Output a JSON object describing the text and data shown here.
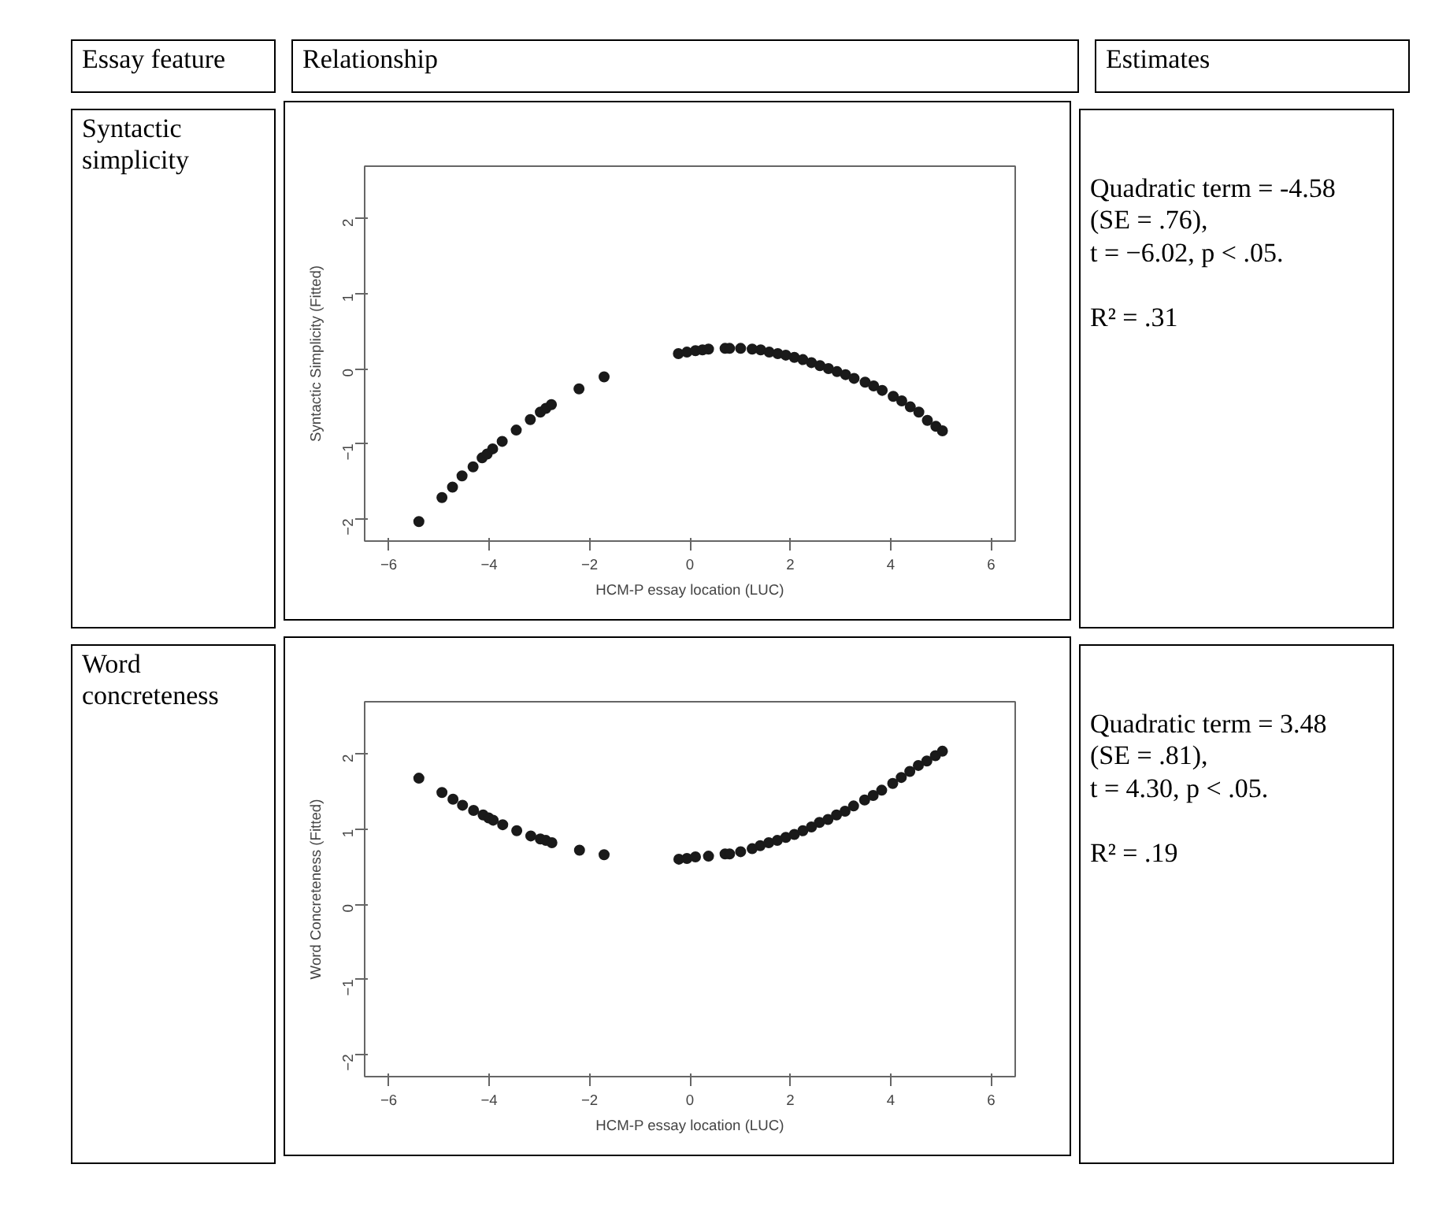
{
  "chart_data": [
    {
      "type": "other",
      "annotations": [
        "Essay feature",
        "Relationship",
        "Estimates"
      ]
    },
    {
      "type": "other",
      "annotations": [
        "Syntactic simplicity"
      ]
    },
    {
      "type": "scatter",
      "xlabel": "HCM-P essay location (LUC)",
      "ylabel": "Syntactic Simplicity (Fitted)",
      "xlim": [
        -6.48,
        6.48
      ],
      "ylim": [
        -2.3,
        2.7
      ],
      "xticks": [
        -6,
        -4,
        -2,
        0,
        2,
        4,
        6
      ],
      "yticks": [
        -2,
        -1,
        0,
        1,
        2
      ],
      "grid": false,
      "marker": "circle",
      "series": [
        {
          "color": "#1a1a1a",
          "x": [
            -5.4,
            -4.94,
            -4.73,
            -4.54,
            -4.32,
            -4.14,
            -4.04,
            -3.93,
            -3.74,
            -3.46,
            -3.18,
            -2.98,
            -2.87,
            -2.76,
            -2.21,
            -1.71,
            -0.23,
            -0.06,
            0.11,
            0.25,
            0.37,
            0.7,
            0.79,
            1.01,
            1.24,
            1.41,
            1.58,
            1.75,
            1.91,
            2.08,
            2.25,
            2.42,
            2.59,
            2.76,
            2.93,
            3.1,
            3.27,
            3.49,
            3.66,
            3.83,
            4.05,
            4.22,
            4.39,
            4.56,
            4.73,
            4.9,
            5.03
          ],
          "values": [
            -2.04,
            -1.72,
            -1.58,
            -1.43,
            -1.31,
            -1.19,
            -1.14,
            -1.07,
            -0.97,
            -0.82,
            -0.68,
            -0.58,
            -0.53,
            -0.48,
            -0.27,
            -0.11,
            0.2,
            0.22,
            0.24,
            0.25,
            0.26,
            0.27,
            0.27,
            0.27,
            0.26,
            0.25,
            0.22,
            0.2,
            0.18,
            0.15,
            0.12,
            0.08,
            0.04,
            0.0,
            -0.04,
            -0.08,
            -0.13,
            -0.18,
            -0.23,
            -0.29,
            -0.37,
            -0.43,
            -0.51,
            -0.58,
            -0.69,
            -0.77,
            -0.83
          ]
        }
      ]
    },
    {
      "type": "other",
      "annotations": [
        "Quadratic term = -4.58",
        "(SE = .76),",
        "t = −6.02, p < .05.",
        "R² = .31"
      ]
    },
    {
      "type": "other",
      "annotations": [
        "Word concreteness"
      ]
    },
    {
      "type": "scatter",
      "xlabel": "HCM-P essay location (LUC)",
      "ylabel": "Word Concreteness (Fitted)",
      "xlim": [
        -6.48,
        6.48
      ],
      "ylim": [
        -2.3,
        2.7
      ],
      "xticks": [
        -6,
        -4,
        -2,
        0,
        2,
        4,
        6
      ],
      "yticks": [
        -2,
        -1,
        0,
        1,
        2
      ],
      "grid": false,
      "marker": "circle",
      "series": [
        {
          "color": "#1a1a1a",
          "x": [
            -5.4,
            -4.94,
            -4.72,
            -4.53,
            -4.31,
            -4.12,
            -4.01,
            -3.92,
            -3.73,
            -3.45,
            -3.17,
            -2.98,
            -2.87,
            -2.75,
            -2.2,
            -1.71,
            -0.22,
            -0.06,
            0.11,
            0.37,
            0.7,
            0.79,
            1.01,
            1.24,
            1.4,
            1.57,
            1.74,
            1.91,
            2.08,
            2.25,
            2.42,
            2.58,
            2.75,
            2.92,
            3.09,
            3.26,
            3.48,
            3.65,
            3.82,
            4.04,
            4.21,
            4.38,
            4.55,
            4.72,
            4.89,
            5.03
          ],
          "values": [
            1.68,
            1.49,
            1.4,
            1.32,
            1.25,
            1.19,
            1.15,
            1.12,
            1.06,
            0.98,
            0.91,
            0.87,
            0.85,
            0.82,
            0.72,
            0.66,
            0.6,
            0.61,
            0.63,
            0.64,
            0.67,
            0.67,
            0.7,
            0.74,
            0.78,
            0.82,
            0.85,
            0.89,
            0.93,
            0.98,
            1.03,
            1.09,
            1.13,
            1.19,
            1.24,
            1.31,
            1.39,
            1.45,
            1.52,
            1.61,
            1.69,
            1.77,
            1.85,
            1.91,
            1.98,
            2.04
          ]
        }
      ]
    },
    {
      "type": "other",
      "annotations": [
        "Quadratic term = 3.48",
        "(SE = .81),",
        "t = 4.30, p < .05.",
        "R² = .19"
      ]
    }
  ]
}
